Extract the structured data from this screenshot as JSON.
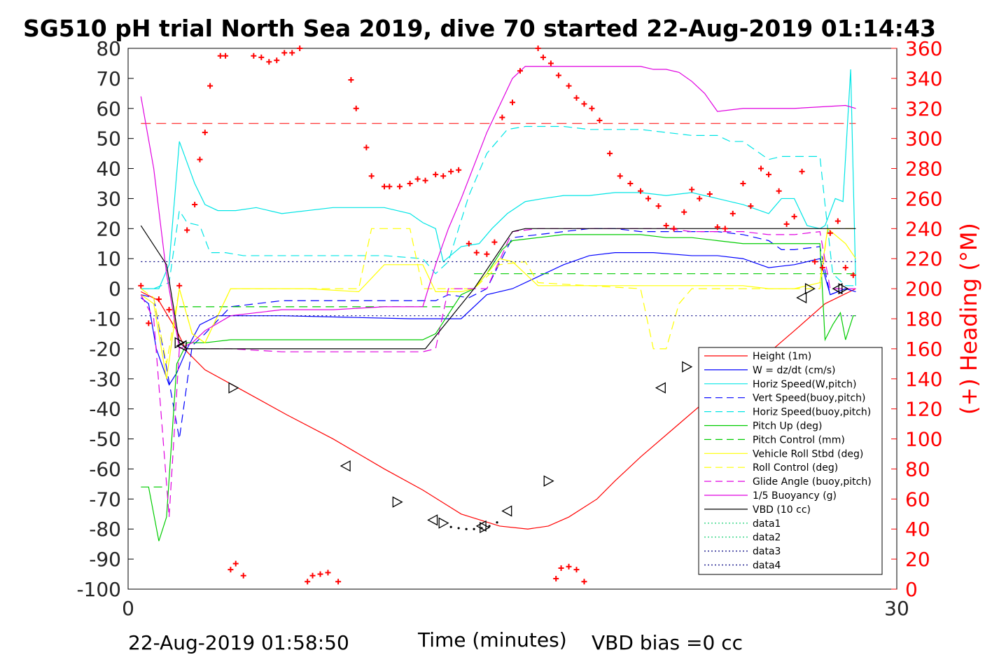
{
  "chart_data": {
    "type": "line",
    "title": "SG510 pH trial North Sea 2019, dive 70 started 22-Aug-2019 01:14:43",
    "xlabel": "Time (minutes)",
    "ylabel": "",
    "y2label": "(+) Heading (°M)",
    "xlim": [
      0,
      30
    ],
    "ylim": [
      -100,
      80
    ],
    "y2lim": [
      0,
      360
    ],
    "x_ticks": [
      "0",
      "30"
    ],
    "y_ticks": [
      "80",
      "70",
      "60",
      "50",
      "40",
      "30",
      "20",
      "10",
      "0",
      "-10",
      "-20",
      "-30",
      "-40",
      "-50",
      "-60",
      "-70",
      "-80",
      "-90",
      "-100"
    ],
    "y2_ticks": [
      "360",
      "340",
      "320",
      "300",
      "280",
      "260",
      "240",
      "220",
      "200",
      "180",
      "160",
      "140",
      "120",
      "100",
      "80",
      "60",
      "40",
      "20",
      "0"
    ],
    "footer_left": "22-Aug-2019 01:58:50",
    "footer_right": "VBD bias =0 cc",
    "legend_position": "lower-right",
    "grid": false,
    "colors": {
      "red": "#ff0000",
      "blue": "#0000ff",
      "cyan": "#00e5e5",
      "green": "#00cc00",
      "yellow": "#ffff00",
      "magenta": "#e000e0",
      "black": "#000000",
      "dotgreen": "#00cc66",
      "dotnavy": "#000080"
    },
    "series": [
      {
        "name": "Height (1m)",
        "color": "#ff0000",
        "dash": "solid",
        "x": [
          0.5,
          1.2,
          1.9,
          2.3,
          3.0,
          4.5,
          6.2,
          8.0,
          10.0,
          11.5,
          13.0,
          14.5,
          15.6,
          16.4,
          17.2,
          18.3,
          19.0,
          20.0,
          21.5,
          23.0,
          24.5,
          26.0,
          27.2,
          28.4
        ],
        "y": [
          -1,
          -4,
          -14,
          -21,
          -27,
          -34,
          -42,
          -50,
          -60,
          -67,
          -75,
          -79,
          -80,
          -79,
          -76,
          -70,
          -64,
          -56,
          -45,
          -34,
          -25,
          -14,
          -5,
          0
        ]
      },
      {
        "name": "W = dz/dt (cm/s)",
        "color": "#0000ff",
        "dash": "solid",
        "x": [
          0.5,
          0.8,
          1.1,
          1.6,
          1.9,
          2.3,
          2.8,
          3.5,
          6.0,
          8.5,
          11.0,
          12.0,
          13.0,
          14.0,
          15.0,
          16.0,
          17.0,
          18.0,
          19.0,
          20.5,
          22.0,
          23.0,
          24.0,
          25.0,
          26.0,
          27.0,
          27.4,
          28.0,
          28.4
        ],
        "y": [
          -3,
          -5,
          -20,
          -32,
          -28,
          -20,
          -12,
          -9,
          -9,
          -9.5,
          -10,
          -10,
          -10,
          -2,
          0,
          4,
          8,
          11,
          12,
          12,
          11,
          11,
          10,
          7,
          8,
          10,
          -2,
          0,
          -1
        ]
      },
      {
        "name": "Horiz Speed(W,pitch)",
        "color": "#00e5e5",
        "dash": "solid",
        "x": [
          0.5,
          1.2,
          1.6,
          2.0,
          2.3,
          2.6,
          3.0,
          3.5,
          4.2,
          5.0,
          6.0,
          8.0,
          10.0,
          11.0,
          11.5,
          12.0,
          12.3,
          13.0,
          13.7,
          14.2,
          14.8,
          15.5,
          16.2,
          17.0,
          18.0,
          19.0,
          20.0,
          21.0,
          22.0,
          23.0,
          24.0,
          25.0,
          25.5,
          26.0,
          26.5,
          27.0,
          27.2,
          27.6,
          27.9,
          28.2,
          28.4
        ],
        "y": [
          0,
          0,
          8,
          49,
          42,
          35,
          28,
          26,
          26,
          27,
          25,
          27,
          27,
          25,
          22,
          20,
          9,
          14,
          15,
          20,
          25,
          29,
          30,
          31,
          31,
          32,
          32,
          31,
          32,
          30,
          28,
          25,
          30,
          30,
          21,
          20,
          21,
          30,
          29,
          73,
          1
        ]
      },
      {
        "name": "Vert Speed(buoy,pitch)",
        "color": "#0000ff",
        "dash": "dashed",
        "x": [
          0.5,
          1.0,
          1.6,
          2.0,
          2.5,
          3.0,
          4.0,
          6.0,
          8.0,
          10.0,
          11.5,
          12.0,
          12.5,
          13.3,
          14.0,
          15.0,
          16.0,
          17.0,
          18.0,
          19.0,
          20.0,
          21.0,
          22.0,
          23.0,
          24.0,
          25.0,
          25.5,
          26.0,
          27.0,
          27.4,
          28.0,
          28.4
        ],
        "y": [
          -2,
          -3,
          -31,
          -50,
          -19,
          -15,
          -6,
          -4,
          -4,
          -4,
          -4,
          -4,
          -2,
          -3,
          0,
          17,
          18,
          19,
          20,
          20,
          19,
          19,
          19,
          19,
          18,
          16,
          13,
          13,
          14,
          -2,
          0,
          -1
        ]
      },
      {
        "name": "Horiz Speed(buoy,pitch)",
        "color": "#00e5e5",
        "dash": "dashed",
        "x": [
          0.5,
          1.0,
          1.6,
          2.0,
          2.3,
          2.8,
          3.2,
          3.8,
          4.5,
          6.0,
          8.0,
          10.0,
          11.5,
          12.0,
          12.5,
          13.3,
          14.0,
          14.8,
          15.5,
          16.0,
          17.0,
          18.0,
          19.0,
          20.0,
          21.0,
          22.0,
          23.0,
          23.5,
          24.0,
          25.0,
          25.5,
          26.0,
          27.0,
          27.2,
          27.5,
          28.0,
          28.4
        ],
        "y": [
          0,
          0,
          2,
          26,
          22,
          21,
          12,
          12,
          11,
          11,
          11,
          11,
          10,
          5,
          9,
          31,
          45,
          53,
          54,
          54,
          54,
          53,
          53,
          53,
          52,
          51,
          51,
          49,
          49,
          43,
          44,
          44,
          44,
          28,
          5,
          1,
          1
        ]
      },
      {
        "name": "Pitch Up (deg)",
        "color": "#00cc00",
        "dash": "solid",
        "x": [
          0.5,
          0.8,
          1.2,
          1.5,
          1.9,
          2.3,
          3.0,
          4.0,
          6.0,
          8.0,
          10.0,
          11.5,
          12.0,
          13.0,
          13.5,
          14.0,
          14.6,
          15.0,
          16.0,
          17.0,
          18.0,
          19.0,
          20.0,
          21.0,
          22.0,
          23.0,
          24.0,
          25.0,
          26.0,
          27.0,
          27.2,
          27.5,
          27.8,
          28.0,
          28.3,
          28.4
        ],
        "y": [
          -66,
          -66,
          -84,
          -76,
          -25,
          -18,
          -18,
          -17,
          -17,
          -17,
          -17,
          -17,
          -15,
          -2,
          0,
          5,
          13,
          16,
          17,
          18,
          18,
          18,
          18,
          17,
          17,
          16,
          15,
          15,
          15,
          15,
          -17,
          -12,
          -8,
          -17,
          -9,
          -9
        ]
      },
      {
        "name": "Pitch Control (mm)",
        "color": "#00cc00",
        "dash": "dashed",
        "x": [
          1.0,
          1.5,
          2.0,
          28.4
        ],
        "y": [
          -66,
          -66,
          -6,
          -6
        ],
        "segments": [
          {
            "x": [
              2.0,
              12.8
            ],
            "y": [
              -6,
              -6
            ]
          },
          {
            "x": [
              13.5,
              28.4
            ],
            "y": [
              5,
              5
            ]
          }
        ]
      },
      {
        "name": "Vehicle Roll Stbd (deg)",
        "color": "#ffff00",
        "dash": "solid",
        "x": [
          0.5,
          1.0,
          1.5,
          2.0,
          2.5,
          3.0,
          4.0,
          5.0,
          7.0,
          9.0,
          10.0,
          11.0,
          11.5,
          12.0,
          12.5,
          13.0,
          13.5,
          14.5,
          15.0,
          16.0,
          17.0,
          18.0,
          20.0,
          22.0,
          24.0,
          25.0,
          26.0,
          27.0,
          27.3,
          28.0,
          28.4
        ],
        "y": [
          -2,
          -5,
          -30,
          0,
          -15,
          -18,
          0,
          0,
          0,
          -1,
          8,
          8,
          8,
          -1,
          -1,
          -1,
          0,
          10,
          9,
          1,
          1,
          1,
          1,
          1,
          1,
          0,
          0,
          2,
          20,
          15,
          10
        ]
      },
      {
        "name": "Roll Control (deg)",
        "color": "#ffff00",
        "dash": "dashed",
        "x": [
          0.5,
          1.0,
          1.5,
          2.0,
          2.5,
          3.0,
          4.0,
          8.0,
          9.0,
          9.5,
          10.5,
          11.0,
          11.5,
          12.0,
          13.5,
          14.5,
          15.5,
          16.0,
          20.0,
          20.5,
          21.0,
          21.5,
          22.0,
          27.0,
          27.3,
          28.4
        ],
        "y": [
          0,
          -3,
          -25,
          0,
          -15,
          -18,
          0,
          0,
          0,
          20,
          20,
          20,
          0,
          0,
          0,
          8,
          9,
          2,
          0,
          -20,
          -20,
          -5,
          0,
          0,
          20,
          20
        ]
      },
      {
        "name": "Glide Angle (buoy,pitch)",
        "color": "#e000e0",
        "dash": "dashed",
        "x": [
          0.5,
          1.0,
          1.6,
          2.0,
          2.5,
          3.0,
          4.0,
          6.0,
          8.0,
          10.0,
          11.5,
          12.0,
          12.5,
          13.3,
          14.0,
          15.0,
          16.0,
          17.0,
          18.0,
          19.0,
          20.0,
          21.0,
          22.0,
          23.0,
          24.0,
          25.0,
          26.0,
          27.0,
          27.4,
          28.0,
          28.4
        ],
        "y": [
          -2,
          -10,
          -76,
          -20,
          -20,
          -20,
          -20,
          -21,
          -21,
          -21,
          -21,
          -20,
          0,
          0,
          0,
          19,
          20,
          20,
          20,
          20,
          20,
          20,
          19,
          19,
          19,
          18,
          18,
          19,
          0,
          0,
          0
        ]
      },
      {
        "name": "1/5 Buoyancy (g)",
        "color": "#e000e0",
        "dash": "solid",
        "x": [
          0.5,
          1.0,
          1.5,
          2.0,
          2.5,
          3.0,
          4.0,
          5.0,
          6.0,
          8.0,
          10.0,
          11.0,
          11.5,
          12.0,
          12.5,
          13.0,
          14.0,
          15.0,
          15.5,
          16.0,
          18.0,
          19.0,
          20.0,
          20.5,
          21.0,
          21.5,
          22.0,
          22.5,
          23.0,
          24.0,
          26.0,
          28.0,
          28.4
        ],
        "y": [
          64,
          40,
          5,
          -20,
          -18,
          -14,
          -9,
          -8,
          -7,
          -7,
          -6,
          -6,
          -6,
          8,
          20,
          30,
          52,
          70,
          74,
          74,
          74,
          74,
          74,
          73,
          73,
          72,
          69,
          65,
          59,
          60,
          60,
          61,
          60
        ]
      },
      {
        "name": "VBD (10 cc)",
        "color": "#000000",
        "dash": "solid",
        "x": [
          0.5,
          1.5,
          2.0,
          2.3,
          4.0,
          8.0,
          11.6,
          13.5,
          15.0,
          15.5,
          28.4
        ],
        "y": [
          21,
          8,
          -18,
          -20,
          -20,
          -20,
          -20,
          0,
          19,
          20,
          20
        ]
      },
      {
        "name": "data1",
        "color": "#00cc66",
        "dash": "dotted",
        "x": [],
        "y": []
      },
      {
        "name": "data2",
        "color": "#00cc66",
        "dash": "dotted",
        "x": [],
        "y": []
      },
      {
        "name": "data3",
        "color": "#000080",
        "dash": "dotted",
        "x": [
          0.5,
          28.4
        ],
        "y": [
          9,
          9
        ]
      },
      {
        "name": "data4",
        "color": "#000080",
        "dash": "dotted",
        "x": [
          0.5,
          28.4
        ],
        "y": [
          -9,
          -9
        ]
      }
    ],
    "reference_line": {
      "y": 55,
      "color": "#ff0000",
      "dash": "dashed",
      "x": [
        0.5,
        28.4
      ]
    },
    "heading_points": {
      "color": "#ff0000",
      "x": [
        0.5,
        0.8,
        1.2,
        1.6,
        2.0,
        2.3,
        2.6,
        2.8,
        3.0,
        3.2,
        3.6,
        3.8,
        4.9,
        5.2,
        5.5,
        5.8,
        6.1,
        6.4,
        6.7,
        8.7,
        8.9,
        9.3,
        9.5,
        10.0,
        10.2,
        10.6,
        11.0,
        11.3,
        11.6,
        12.0,
        12.3,
        12.6,
        12.9,
        13.3,
        13.6,
        14.0,
        14.3,
        14.6,
        15.0,
        15.3,
        16.0,
        16.2,
        16.5,
        16.8,
        17.2,
        17.5,
        17.8,
        18.1,
        18.4,
        18.8,
        19.2,
        19.6,
        20.0,
        20.3,
        20.7,
        21.0,
        21.3,
        21.7,
        22.0,
        22.3,
        22.7,
        23.0,
        23.3,
        23.6,
        24.0,
        24.3,
        24.7,
        25.0,
        25.4,
        25.7,
        26.0,
        26.3,
        26.8,
        27.1,
        27.4,
        27.7,
        28.0,
        28.3
      ],
      "y": [
        202,
        177,
        193,
        186,
        202,
        239,
        256,
        286,
        304,
        335,
        355,
        355,
        355,
        354,
        351,
        352,
        357,
        357,
        360,
        339,
        320,
        294,
        275,
        268,
        268,
        268,
        270,
        273,
        272,
        276,
        275,
        278,
        279,
        230,
        224,
        223,
        231,
        314,
        324,
        345,
        360,
        354,
        350,
        342,
        335,
        327,
        323,
        320,
        312,
        290,
        275,
        270,
        265,
        260,
        255,
        242,
        240,
        251,
        266,
        260,
        263,
        241,
        240,
        250,
        270,
        255,
        280,
        276,
        265,
        243,
        248,
        278,
        218,
        214,
        237,
        245,
        214,
        209
      ],
      "extra": [
        {
          "x": [
            4.0,
            4.2,
            4.5,
            7.0,
            7.2,
            7.5,
            7.8,
            8.2,
            16.7,
            16.9,
            17.2,
            17.5,
            17.8
          ],
          "y": [
            13,
            17,
            9,
            5,
            9,
            10,
            11,
            5,
            7,
            14,
            15,
            13,
            5
          ]
        }
      ]
    },
    "markers": {
      "x": [
        2.0,
        2.1,
        4.1,
        8.5,
        10.5,
        11.9,
        12.3,
        13.8,
        13.9,
        14.8,
        16.4,
        20.8,
        21.8,
        26.3,
        26.6,
        27.7,
        27.9
      ],
      "y": [
        -18,
        -19,
        -33,
        -59,
        -71,
        -77,
        -78,
        -79,
        -79.5,
        -74,
        -64,
        -33,
        -26,
        -3,
        0,
        0,
        0
      ]
    }
  }
}
